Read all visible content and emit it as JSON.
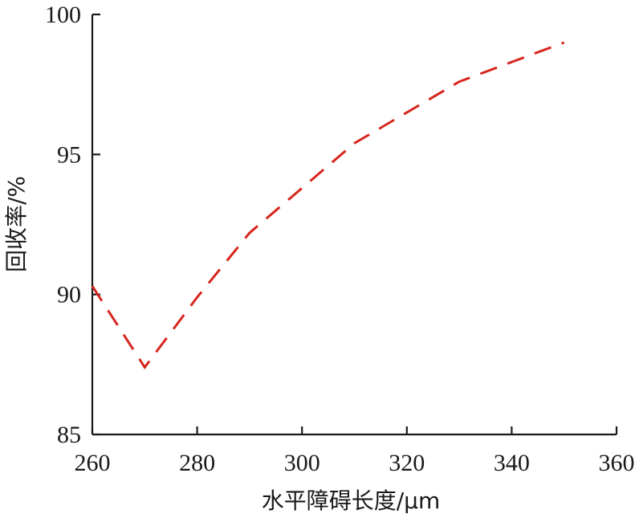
{
  "chart_data": {
    "type": "line",
    "title": "",
    "xlabel": "水平障碍长度/μm",
    "ylabel": "回收率/%",
    "xlim": [
      260,
      360
    ],
    "ylim": [
      85,
      100
    ],
    "x_ticks": [
      260,
      280,
      300,
      320,
      340,
      360
    ],
    "y_ticks": [
      85,
      90,
      95,
      100
    ],
    "grid": false,
    "legend": "none",
    "series": [
      {
        "color": "#d7261e",
        "line_style": "dashed",
        "x": [
          260,
          270,
          280,
          290,
          300,
          310,
          320,
          330,
          340,
          350
        ],
        "y": [
          90.3,
          87.4,
          89.9,
          92.2,
          93.8,
          95.4,
          96.5,
          97.6,
          98.3,
          99.0
        ]
      }
    ]
  }
}
